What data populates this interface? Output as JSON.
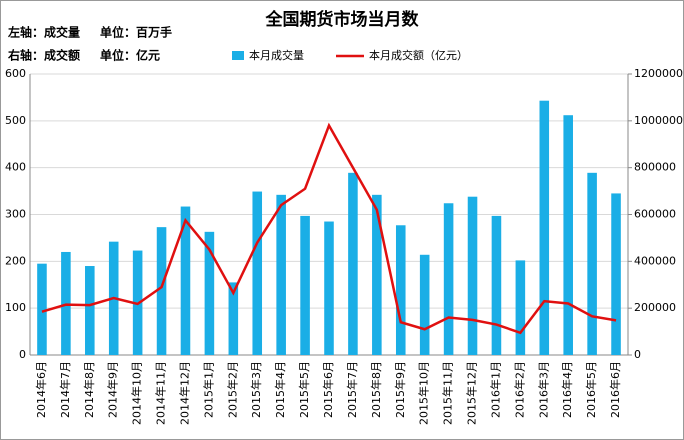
{
  "chart_data": {
    "type": "bar_line",
    "title": "全国期货市场当月数",
    "axis_notes": [
      {
        "axis": "左轴：成交量",
        "unit": "单位：百万手"
      },
      {
        "axis": "右轴：成交额",
        "unit": "单位：亿元"
      }
    ],
    "categories": [
      "2014年6月",
      "2014年7月",
      "2014年8月",
      "2014年9月",
      "2014年10月",
      "2014年11月",
      "2014年12月",
      "2015年1月",
      "2015年2月",
      "2015年3月",
      "2015年4月",
      "2015年5月",
      "2015年6月",
      "2015年7月",
      "2015年8月",
      "2015年9月",
      "2015年10月",
      "2015年11月",
      "2015年12月",
      "2016年1月",
      "2016年2月",
      "2016年3月",
      "2016年4月",
      "2016年5月",
      "2016年6月"
    ],
    "series": [
      {
        "name": "本月成交量",
        "type": "bar",
        "color": "#1aaee6",
        "values": [
          195,
          220,
          190,
          242,
          223,
          273,
          317,
          263,
          155,
          349,
          342,
          297,
          285,
          389,
          342,
          277,
          214,
          324,
          338,
          297,
          202,
          543,
          512,
          389,
          345
        ]
      },
      {
        "name": "本月成交额（亿元）",
        "type": "line",
        "axis": "y2",
        "color": "#e01010",
        "values": [
          185000,
          215000,
          213000,
          243000,
          218000,
          290000,
          575000,
          450000,
          265000,
          480000,
          640000,
          710000,
          980000,
          800000,
          620000,
          140000,
          110000,
          160000,
          150000,
          130000,
          95000,
          230000,
          220000,
          165000,
          148000
        ]
      }
    ],
    "ylim": [
      0,
      600
    ],
    "yticks": [
      0,
      100,
      200,
      300,
      400,
      500,
      600
    ],
    "y2lim": [
      0,
      1200000
    ],
    "y2ticks": [
      0,
      200000,
      400000,
      600000,
      800000,
      1000000,
      1200000
    ],
    "grid": true
  }
}
